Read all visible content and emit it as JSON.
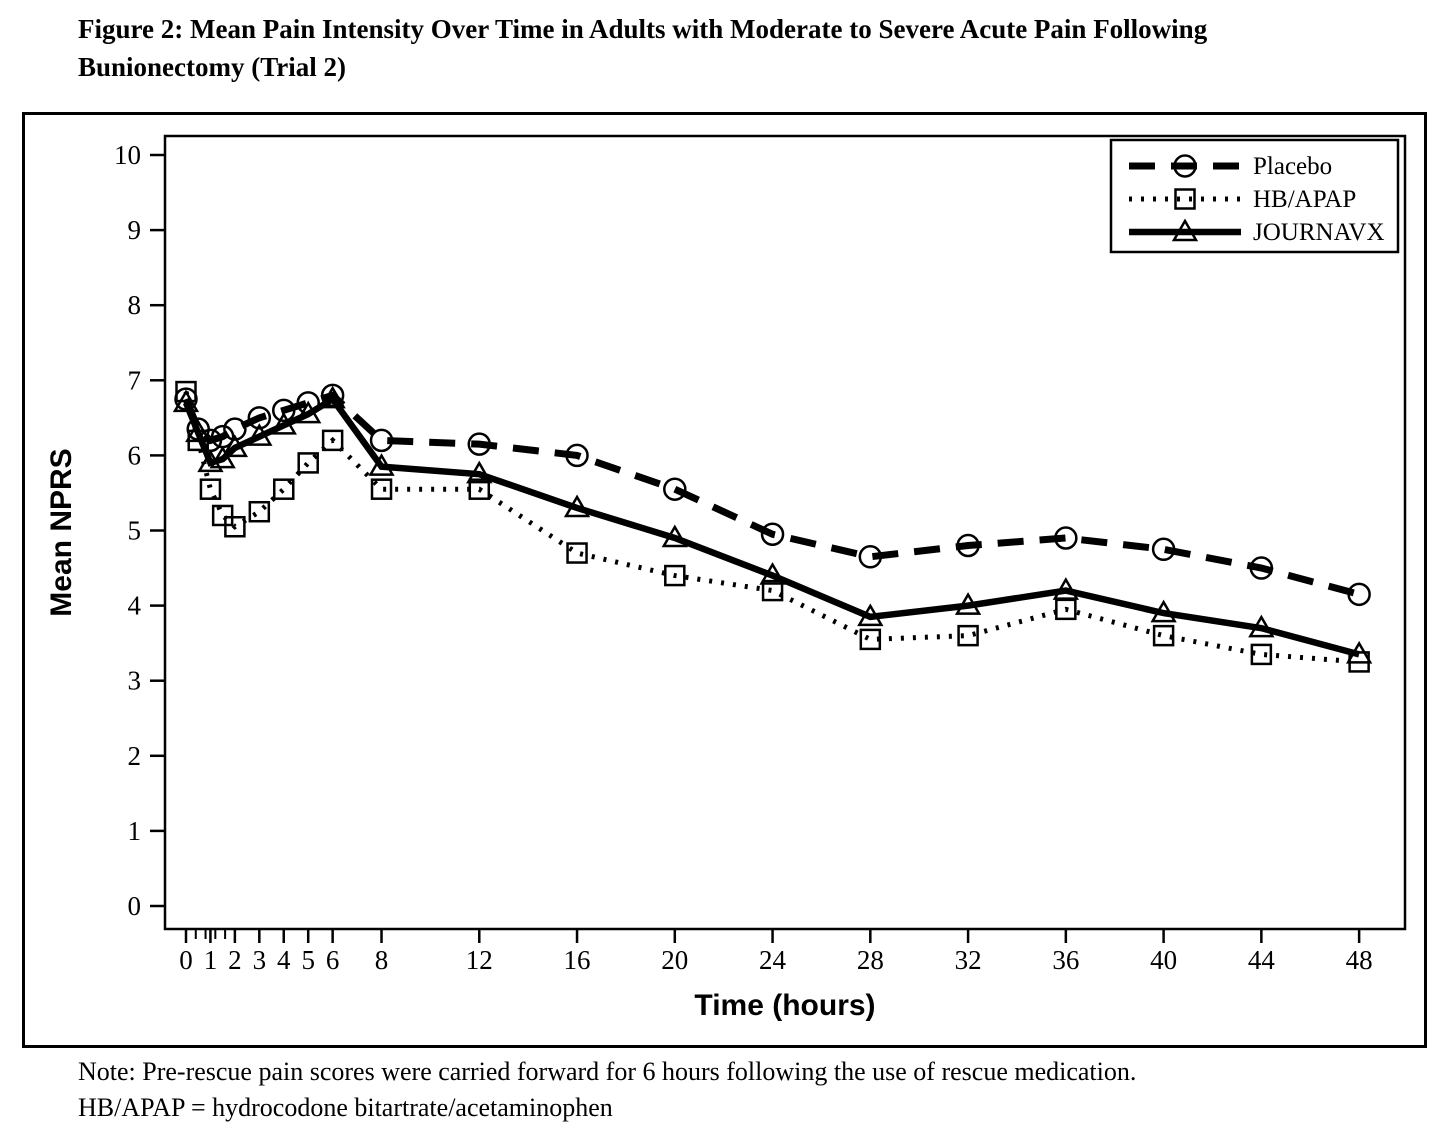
{
  "figure": {
    "title_line1": "Figure 2: Mean Pain Intensity Over Time in Adults with Moderate to Severe Acute Pain Following",
    "title_line2": "Bunionectomy (Trial 2)"
  },
  "note": {
    "line1": "Note: Pre-rescue pain scores were carried forward for 6 hours following the use of rescue medication.",
    "line2": "HB/APAP = hydrocodone bitartrate/acetaminophen"
  },
  "chart_data": {
    "type": "line",
    "title": "",
    "xlabel": "Time (hours)",
    "ylabel": "Mean NPRS",
    "xlim": [
      0,
      48
    ],
    "ylim": [
      0,
      10
    ],
    "grid": false,
    "legend_position": "top-right",
    "colors": {
      "line": "#000000",
      "background": "#ffffff"
    },
    "y_ticks": [
      0,
      1,
      2,
      3,
      4,
      5,
      6,
      7,
      8,
      9,
      10
    ],
    "x_major_ticks": [
      0,
      1,
      2,
      3,
      4,
      5,
      6,
      8,
      12,
      16,
      20,
      24,
      28,
      32,
      36,
      40,
      44,
      48
    ],
    "x_minor_ticks": [
      0.4,
      0.8,
      1.2,
      1.6
    ],
    "x": [
      0,
      0.5,
      1,
      1.5,
      2,
      3,
      4,
      5,
      6,
      8,
      12,
      16,
      20,
      24,
      28,
      32,
      36,
      40,
      44,
      48
    ],
    "series": [
      {
        "name": "Placebo",
        "line": "dashed",
        "marker": "circle",
        "values": [
          6.75,
          6.35,
          6.2,
          6.25,
          6.35,
          6.5,
          6.6,
          6.7,
          6.8,
          6.2,
          6.15,
          6.0,
          5.55,
          4.95,
          4.65,
          4.8,
          4.9,
          4.75,
          4.5,
          4.15
        ]
      },
      {
        "name": "HB/APAP",
        "line": "dotted",
        "marker": "square",
        "values": [
          6.85,
          6.2,
          5.55,
          5.2,
          5.05,
          5.25,
          5.55,
          5.9,
          6.2,
          5.55,
          5.55,
          4.7,
          4.4,
          4.2,
          3.55,
          3.6,
          3.95,
          3.6,
          3.35,
          3.25
        ]
      },
      {
        "name": "JOURNAVX",
        "line": "solid",
        "marker": "triangle",
        "values": [
          6.7,
          6.3,
          5.9,
          5.95,
          6.1,
          6.25,
          6.4,
          6.55,
          6.75,
          5.85,
          5.75,
          5.3,
          4.9,
          4.4,
          3.85,
          4.0,
          4.2,
          3.9,
          3.7,
          3.35
        ]
      }
    ]
  }
}
